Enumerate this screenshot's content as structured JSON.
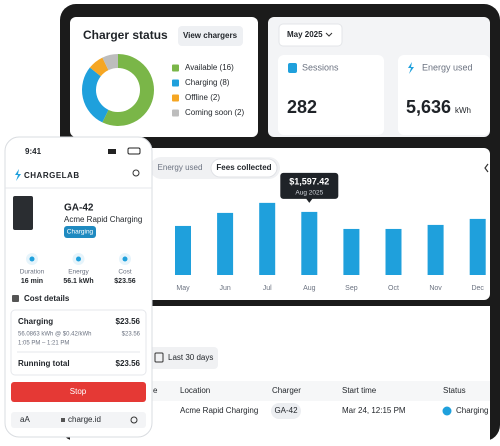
{
  "chart_data": [
    {
      "type": "pie",
      "title": "Charger status",
      "categories": [
        "Available (16)",
        "Charging (8)",
        "Offline (2)",
        "Coming soon (2)"
      ],
      "values": [
        16,
        8,
        2,
        2
      ],
      "colors": [
        "#7ab648",
        "#1fa0dc",
        "#f5a623",
        "#bdbdbd"
      ]
    },
    {
      "type": "bar",
      "tabs": [
        "Energy used",
        "Fees collected"
      ],
      "categories": [
        "May",
        "Jun",
        "Jul",
        "Aug",
        "Sep",
        "Oct",
        "Nov",
        "Dec"
      ],
      "values": [
        1242,
        1572,
        1826,
        1597.42,
        1166,
        1166,
        1268,
        1420
      ],
      "value_labels": [
        null,
        null,
        null,
        "$1,597.42",
        null,
        null,
        null,
        null
      ],
      "tooltip": "Aug 2025",
      "color": "#1fa0dc",
      "ylim": [
        0,
        2000
      ]
    }
  ],
  "header": {
    "view_button": "View chargers",
    "month": "May 2025"
  },
  "stats": [
    {
      "label": "Sessions",
      "value": 282
    },
    {
      "label": "Energy used",
      "value": "5,636",
      "unit": "kWh"
    }
  ],
  "sessions_table": {
    "filter": "Last 30 days",
    "columns": [
      "e",
      "Location",
      "Charger",
      "Start time",
      "Status"
    ],
    "rows": [
      [
        "Acme Rapid Charging",
        "GA-42",
        "Mar 24, 12:15 PM",
        "Charging"
      ]
    ]
  },
  "phone": {
    "time": "9:41",
    "logo": "CHARGELAB",
    "charger_id": "GA-42",
    "site": "Acme Rapid Charging",
    "status": "Charging",
    "metrics": [
      {
        "label": "Duration",
        "value": "16 min"
      },
      {
        "label": "Energy",
        "value": "56.1 kWh"
      },
      {
        "label": "Cost",
        "value": "$23.56"
      }
    ],
    "cost_title": "Cost details",
    "cost": {
      "line": "Charging",
      "line_amount": "$23.56",
      "detail": "56.0863 kWh @ $0.42/kWh",
      "detail_amount": "$23.56",
      "period": "1:05 PM – 1:21 PM",
      "total_label": "Running total",
      "total": "$23.56"
    },
    "stop": "Stop",
    "text_size": "aA",
    "url": "charge.id"
  }
}
